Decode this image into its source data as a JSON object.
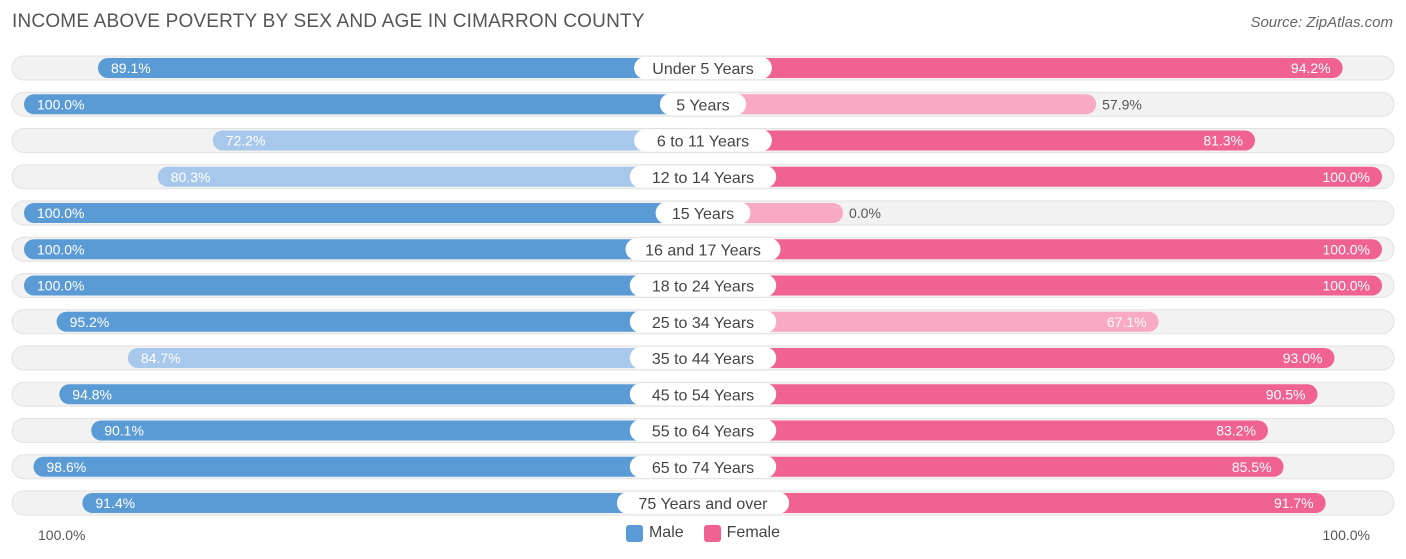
{
  "title": "INCOME ABOVE POVERTY BY SEX AND AGE IN CIMARRON COUNTY",
  "source": "Source: ZipAtlas.com",
  "colors": {
    "male_strong": "#5b9bd5",
    "male_light": "#a7c8ea",
    "female_strong": "#f06292",
    "female_light": "#f8a9c4"
  },
  "chart_data": {
    "type": "bar",
    "orientation": "horizontal-diverging",
    "categories": [
      "Under 5 Years",
      "5 Years",
      "6 to 11 Years",
      "12 to 14 Years",
      "15 Years",
      "16 and 17 Years",
      "18 to 24 Years",
      "25 to 34 Years",
      "35 to 44 Years",
      "45 to 54 Years",
      "55 to 64 Years",
      "65 to 74 Years",
      "75 Years and over"
    ],
    "series": [
      {
        "name": "Male",
        "values": [
          89.1,
          100.0,
          72.2,
          80.3,
          100.0,
          100.0,
          100.0,
          95.2,
          84.7,
          94.8,
          90.1,
          98.6,
          91.4
        ],
        "labels": [
          "89.1%",
          "100.0%",
          "72.2%",
          "80.3%",
          "100.0%",
          "100.0%",
          "100.0%",
          "95.2%",
          "84.7%",
          "94.8%",
          "90.1%",
          "98.6%",
          "91.4%"
        ]
      },
      {
        "name": "Female",
        "values": [
          94.2,
          57.9,
          81.3,
          100.0,
          0.0,
          100.0,
          100.0,
          67.1,
          93.0,
          90.5,
          83.2,
          85.5,
          91.7
        ],
        "labels": [
          "94.2%",
          "57.9%",
          "81.3%",
          "100.0%",
          "0.0%",
          "100.0%",
          "100.0%",
          "67.1%",
          "93.0%",
          "90.5%",
          "83.2%",
          "85.5%",
          "91.7%"
        ]
      }
    ],
    "xlim": [
      0,
      100
    ],
    "axis_left_label": "100.0%",
    "axis_right_label": "100.0%",
    "legend": [
      "Male",
      "Female"
    ],
    "legend_position": "bottom-center"
  }
}
